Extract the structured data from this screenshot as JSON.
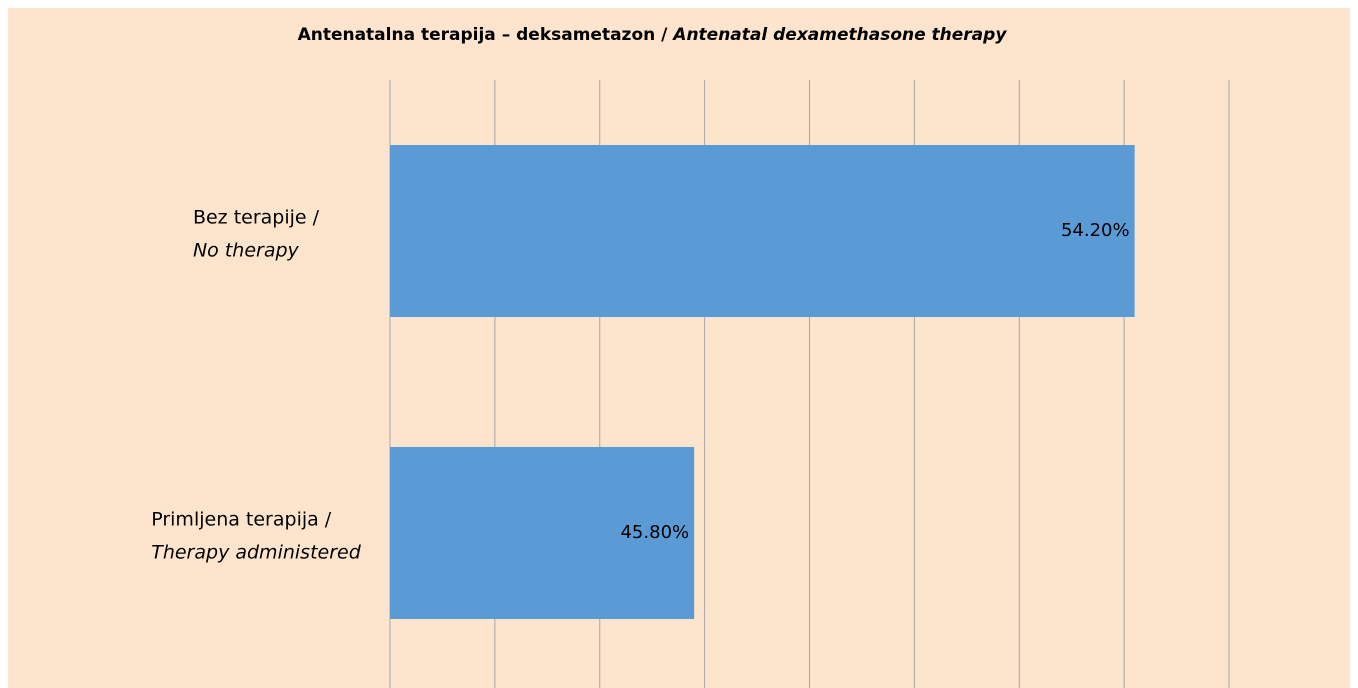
{
  "chart_data": {
    "type": "barh",
    "title": [
      "Antenatalna terapija – deksametazon /",
      "Antenatal dexamethasone therapy"
    ],
    "categories": [
      [
        "Bez terapije /",
        "No therapy"
      ],
      [
        "Primljena terapija /",
        "Therapy administered"
      ]
    ],
    "values": [
      54.2,
      45.8
    ],
    "value_labels": [
      "54.20%",
      "45.80%"
    ],
    "color": "#5b9bd5",
    "xlim": [
      40,
      56
    ],
    "xticks": [
      40,
      42,
      44,
      46,
      48,
      50,
      52,
      54,
      56
    ],
    "grid": true
  }
}
